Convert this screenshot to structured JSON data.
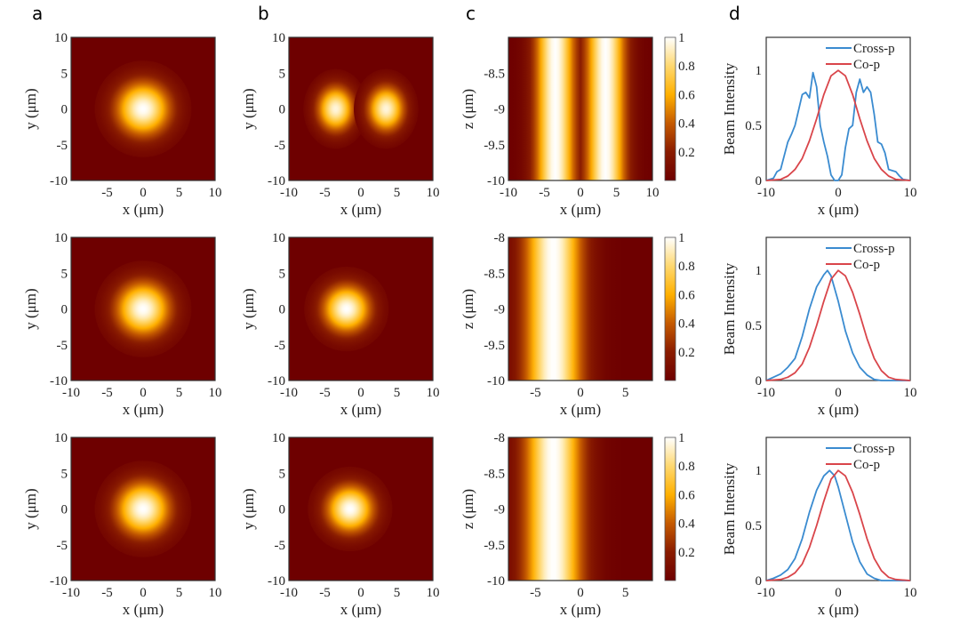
{
  "panel_labels": [
    "a",
    "b",
    "c",
    "d"
  ],
  "colormap": {
    "name": "afmhot-like",
    "stops": [
      "#6e0000",
      "#8a1c00",
      "#c55a00",
      "#ffb000",
      "#ffd870",
      "#ffffff"
    ]
  },
  "line_colors": {
    "cross_p": "#3a8bd0",
    "co_p": "#d9454a"
  },
  "chart_data": [
    {
      "id": "a1",
      "type": "heatmap",
      "panel": "a",
      "row": 1,
      "xlabel": "x (μm)",
      "ylabel": "y (μm)",
      "xlim": [
        -10,
        10
      ],
      "ylim": [
        -10,
        10
      ],
      "xticks": [
        "-5",
        "0",
        "5",
        "10"
      ],
      "yticks": [
        "10",
        "5",
        "0",
        "-5",
        "-10"
      ],
      "beam": {
        "kind": "gauss",
        "cx": 0,
        "w": 3.2
      }
    },
    {
      "id": "a2",
      "type": "heatmap",
      "panel": "a",
      "row": 2,
      "xlabel": "x (μm)",
      "ylabel": "y (μm)",
      "xlim": [
        -10,
        10
      ],
      "ylim": [
        -10,
        10
      ],
      "xticks": [
        "-10",
        "-5",
        "0",
        "5",
        "10"
      ],
      "yticks": [
        "10",
        "5",
        "0",
        "-5",
        "-10"
      ],
      "beam": {
        "kind": "gauss",
        "cx": 0,
        "w": 3.2
      }
    },
    {
      "id": "a3",
      "type": "heatmap",
      "panel": "a",
      "row": 3,
      "xlabel": "x (μm)",
      "ylabel": "y (μm)",
      "xlim": [
        -10,
        10
      ],
      "ylim": [
        -10,
        10
      ],
      "xticks": [
        "-10",
        "-5",
        "0",
        "5",
        "10"
      ],
      "yticks": [
        "10",
        "5",
        "0",
        "-5",
        "-10"
      ],
      "beam": {
        "kind": "gauss",
        "cx": 0,
        "w": 3.2
      }
    },
    {
      "id": "b1",
      "type": "heatmap",
      "panel": "b",
      "row": 1,
      "xlabel": "x (μm)",
      "ylabel": "y (μm)",
      "xlim": [
        -10,
        10
      ],
      "ylim": [
        -10,
        10
      ],
      "xticks": [
        "-10",
        "-5",
        "0",
        "5",
        "10"
      ],
      "yticks": [
        "10",
        "5",
        "0",
        "-5",
        "-10"
      ],
      "beam": {
        "kind": "double",
        "cx": 3.5,
        "w": 2.4
      }
    },
    {
      "id": "b2",
      "type": "heatmap",
      "panel": "b",
      "row": 2,
      "xlabel": "x (μm)",
      "ylabel": "y (μm)",
      "xlim": [
        -10,
        10
      ],
      "ylim": [
        -10,
        10
      ],
      "xticks": [
        "-10",
        "-5",
        "0",
        "5",
        "10"
      ],
      "yticks": [
        "10",
        "5",
        "0",
        "-5",
        "-10"
      ],
      "beam": {
        "kind": "gauss",
        "cx": -2,
        "w": 2.8
      }
    },
    {
      "id": "b3",
      "type": "heatmap",
      "panel": "b",
      "row": 3,
      "xlabel": "x (μm)",
      "ylabel": "y (μm)",
      "xlim": [
        -10,
        10
      ],
      "ylim": [
        -10,
        10
      ],
      "xticks": [
        "-10",
        "-5",
        "0",
        "5",
        "10"
      ],
      "yticks": [
        "10",
        "5",
        "0",
        "-5",
        "-10"
      ],
      "beam": {
        "kind": "gauss",
        "cx": -1.5,
        "w": 2.8
      }
    },
    {
      "id": "c1",
      "type": "heatmap",
      "panel": "c",
      "row": 1,
      "xlabel": "x (μm)",
      "ylabel": "z (μm)",
      "xlim": [
        -10,
        10
      ],
      "ylim": [
        -10,
        -8
      ],
      "xticks": [
        "-10",
        "-5",
        "0",
        "5",
        "10"
      ],
      "yticks": [
        "-8.5",
        "-9",
        "-9.5",
        "-10"
      ],
      "colorbar": {
        "range": [
          0,
          1
        ],
        "ticks": [
          "1",
          "0.8",
          "0.6",
          "0.4",
          "0.2"
        ]
      },
      "beam": {
        "kind": "stripes2",
        "cx": 3.5,
        "w": 2.4
      }
    },
    {
      "id": "c2",
      "type": "heatmap",
      "panel": "c",
      "row": 2,
      "xlabel": "x (μm)",
      "ylabel": "z (μm)",
      "xlim": [
        -8,
        8
      ],
      "ylim": [
        -10,
        -8
      ],
      "xticks": [
        "-5",
        "0",
        "5"
      ],
      "yticks": [
        "-8",
        "-8.5",
        "-9",
        "-9.5",
        "-10"
      ],
      "colorbar": {
        "range": [
          0,
          1
        ],
        "ticks": [
          "1",
          "0.8",
          "0.6",
          "0.4",
          "0.2"
        ]
      },
      "beam": {
        "kind": "stripe",
        "cx": -3,
        "w": 2.8
      }
    },
    {
      "id": "c3",
      "type": "heatmap",
      "panel": "c",
      "row": 3,
      "xlabel": "x (μm)",
      "ylabel": "z (μm)",
      "xlim": [
        -8,
        8
      ],
      "ylim": [
        -10,
        -8
      ],
      "xticks": [
        "-5",
        "0",
        "5"
      ],
      "yticks": [
        "-8",
        "-8.5",
        "-9",
        "-9.5",
        "-10"
      ],
      "colorbar": {
        "range": [
          0,
          1
        ],
        "ticks": [
          "1",
          "0.8",
          "0.6",
          "0.4",
          "0.2"
        ]
      },
      "beam": {
        "kind": "stripe",
        "cx": -3,
        "w": 2.8
      }
    },
    {
      "id": "d1",
      "type": "line",
      "panel": "d",
      "row": 1,
      "xlabel": "x (μm)",
      "ylabel": "Beam Intensity",
      "xlim": [
        -10,
        10
      ],
      "ylim": [
        0,
        1.3
      ],
      "xticks": [
        "-10",
        "0",
        "10"
      ],
      "yticks": [
        "1",
        "0.5",
        "0"
      ],
      "legend": "top-right",
      "series": [
        {
          "name": "Cross-p",
          "x": [
            -10,
            -9,
            -8.5,
            -8,
            -7,
            -6.5,
            -6,
            -5,
            -4.5,
            -4,
            -3.5,
            -3,
            -2.5,
            -2,
            -1.5,
            -1,
            -0.5,
            0,
            0.5,
            1,
            1.5,
            2,
            2.5,
            3,
            3.5,
            4,
            4.5,
            5,
            5.5,
            6,
            6.5,
            7,
            8,
            8.5,
            9,
            10
          ],
          "y": [
            0,
            0.02,
            0.08,
            0.1,
            0.35,
            0.42,
            0.5,
            0.78,
            0.8,
            0.75,
            0.98,
            0.85,
            0.5,
            0.35,
            0.22,
            0.05,
            0,
            0,
            0.05,
            0.3,
            0.47,
            0.5,
            0.8,
            0.92,
            0.8,
            0.85,
            0.8,
            0.6,
            0.35,
            0.33,
            0.25,
            0.1,
            0.08,
            0.04,
            0.01,
            0
          ]
        },
        {
          "name": "Co-p",
          "x": [
            -10,
            -8,
            -7,
            -6,
            -5,
            -4,
            -3,
            -2,
            -1,
            0,
            1,
            2,
            3,
            4,
            5,
            6,
            7,
            8,
            10
          ],
          "y": [
            0,
            0.01,
            0.04,
            0.1,
            0.2,
            0.36,
            0.56,
            0.78,
            0.95,
            1,
            0.95,
            0.78,
            0.56,
            0.36,
            0.2,
            0.1,
            0.04,
            0.01,
            0
          ]
        }
      ]
    },
    {
      "id": "d2",
      "type": "line",
      "panel": "d",
      "row": 2,
      "xlabel": "x (μm)",
      "ylabel": "Beam Intensity",
      "xlim": [
        -10,
        10
      ],
      "ylim": [
        0,
        1.3
      ],
      "xticks": [
        "-10",
        "0",
        "10"
      ],
      "yticks": [
        "1",
        "0.5",
        "0"
      ],
      "legend": "top-right",
      "series": [
        {
          "name": "Cross-p",
          "x": [
            -10,
            -9,
            -8,
            -7,
            -6,
            -5,
            -4,
            -3,
            -2,
            -1.5,
            -1,
            0,
            1,
            2,
            3,
            4,
            5,
            6,
            8,
            10
          ],
          "y": [
            0,
            0.03,
            0.06,
            0.12,
            0.2,
            0.4,
            0.65,
            0.85,
            0.96,
            1,
            0.95,
            0.72,
            0.45,
            0.25,
            0.12,
            0.05,
            0.01,
            0,
            0,
            0
          ]
        },
        {
          "name": "Co-p",
          "x": [
            -10,
            -8,
            -7,
            -6,
            -5,
            -4,
            -3,
            -2,
            -1,
            0,
            1,
            2,
            3,
            4,
            5,
            6,
            7,
            8,
            10
          ],
          "y": [
            0,
            0.01,
            0.03,
            0.07,
            0.15,
            0.3,
            0.5,
            0.72,
            0.92,
            1,
            0.95,
            0.8,
            0.6,
            0.38,
            0.2,
            0.09,
            0.03,
            0.01,
            0
          ]
        }
      ]
    },
    {
      "id": "d3",
      "type": "line",
      "panel": "d",
      "row": 3,
      "xlabel": "x (μm)",
      "ylabel": "Beam Intensity",
      "xlim": [
        -10,
        10
      ],
      "ylim": [
        0,
        1.3
      ],
      "xticks": [
        "-10",
        "0",
        "10"
      ],
      "yticks": [
        "1",
        "0.5",
        "0"
      ],
      "legend": "top-right",
      "series": [
        {
          "name": "Cross-p",
          "x": [
            -10,
            -9,
            -8,
            -7,
            -6,
            -5,
            -4,
            -3,
            -2,
            -1.2,
            -0.5,
            0,
            1,
            2,
            3,
            4,
            5,
            6,
            8,
            10
          ],
          "y": [
            0,
            0.02,
            0.05,
            0.1,
            0.2,
            0.38,
            0.62,
            0.82,
            0.95,
            1,
            0.95,
            0.85,
            0.6,
            0.35,
            0.17,
            0.06,
            0.02,
            0,
            0,
            0
          ]
        },
        {
          "name": "Co-p",
          "x": [
            -10,
            -8,
            -7,
            -6,
            -5,
            -4,
            -3,
            -2,
            -1,
            0,
            1,
            2,
            3,
            4,
            5,
            6,
            7,
            8,
            10
          ],
          "y": [
            0,
            0.01,
            0.03,
            0.07,
            0.15,
            0.3,
            0.5,
            0.72,
            0.92,
            1,
            0.95,
            0.8,
            0.6,
            0.38,
            0.2,
            0.09,
            0.03,
            0.01,
            0
          ]
        }
      ]
    }
  ]
}
